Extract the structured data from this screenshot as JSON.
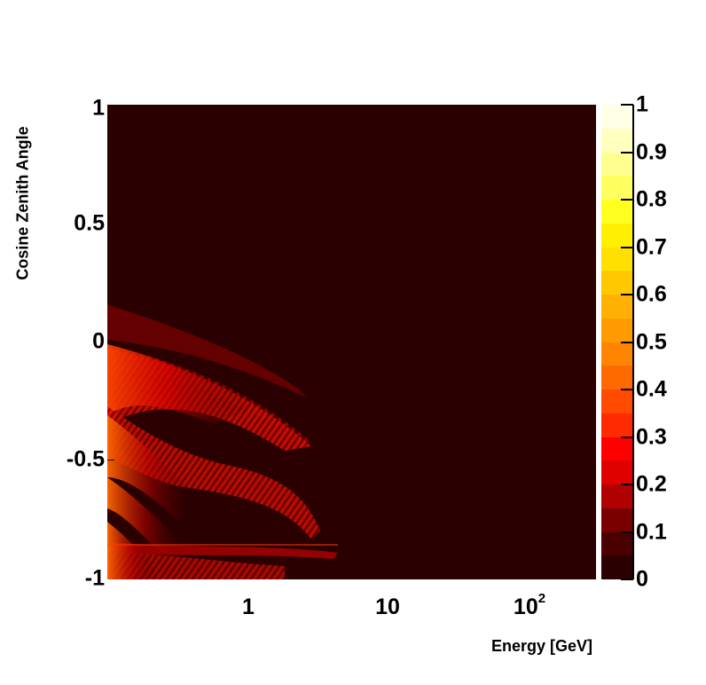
{
  "chart_data": {
    "type": "heatmap",
    "title": "",
    "xlabel": "Energy [GeV]",
    "ylabel": "Cosine Zenith Angle",
    "x_scale": "log",
    "x_range_gev": [
      0.1,
      300
    ],
    "y_range": [
      -1,
      1
    ],
    "x_ticks": [
      {
        "value": 1,
        "label": "1"
      },
      {
        "value": 10,
        "label": "10"
      },
      {
        "value": 100,
        "label": "10",
        "superscript": "2"
      }
    ],
    "y_ticks": [
      {
        "value": 1,
        "label": "1"
      },
      {
        "value": 0.5,
        "label": "0.5"
      },
      {
        "value": 0,
        "label": "0"
      },
      {
        "value": -0.5,
        "label": "-0.5"
      },
      {
        "value": -1,
        "label": "-1"
      }
    ],
    "colorbar": {
      "range": [
        0,
        1
      ],
      "levels": 20,
      "ticks": [
        {
          "value": 0,
          "label": "0"
        },
        {
          "value": 0.1,
          "label": "0.1"
        },
        {
          "value": 0.2,
          "label": "0.2"
        },
        {
          "value": 0.3,
          "label": "0.3"
        },
        {
          "value": 0.4,
          "label": "0.4"
        },
        {
          "value": 0.5,
          "label": "0.5"
        },
        {
          "value": 0.6,
          "label": "0.6"
        },
        {
          "value": 0.7,
          "label": "0.7"
        },
        {
          "value": 0.8,
          "label": "0.8"
        },
        {
          "value": 0.9,
          "label": "0.9"
        },
        {
          "value": 1,
          "label": "1"
        }
      ],
      "colors": [
        "#2a0000",
        "#4a0000",
        "#7a0000",
        "#b00000",
        "#e00000",
        "#ff0000",
        "#ff2a00",
        "#ff4a00",
        "#ff6a00",
        "#ff8400",
        "#ff9a00",
        "#ffb000",
        "#ffc800",
        "#ffe000",
        "#fff000",
        "#ffff20",
        "#ffff60",
        "#ffff90",
        "#ffffc0",
        "#ffffe8"
      ]
    },
    "description": "Oscillation probability map: near-zero (dark) over most of the domain; bright red/orange oscillation fringes concentrated at low energy (< ~3 GeV) and upward-going directions (cos zenith < ~0.15), with fringe bands curving downward toward higher energy, max values ~0.3-0.45 near E ~0.1-0.3 GeV.",
    "regions": [
      {
        "cos_zenith_range": [
          -0.3,
          0.15
        ],
        "energy_gev_max": 2.5,
        "peak_value": 0.35
      },
      {
        "cos_zenith_range": [
          -0.85,
          -0.35
        ],
        "energy_gev_max": 3.0,
        "peak_value": 0.4
      },
      {
        "cos_zenith_range": [
          -1.0,
          -0.82
        ],
        "energy_gev_max": 4.5,
        "peak_value": 0.4
      }
    ]
  }
}
